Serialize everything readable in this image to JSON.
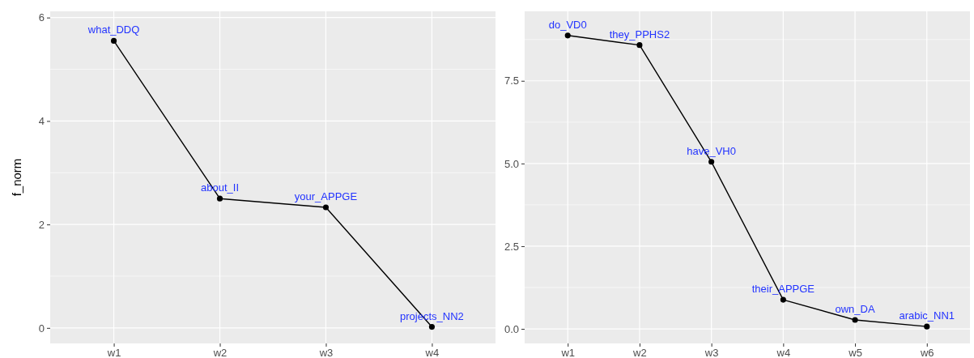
{
  "chart_data": [
    {
      "type": "line",
      "ylabel": "f_norm",
      "categories": [
        "w1",
        "w2",
        "w3",
        "w4"
      ],
      "series": [
        {
          "color": "#000000",
          "values": [
            5.55,
            2.5,
            2.33,
            0.02
          ]
        }
      ],
      "ylim": [
        -0.3,
        6.12
      ],
      "yticks": [
        0,
        2,
        4,
        6
      ],
      "grid": true,
      "marker": "circle",
      "annotations": [
        {
          "text": "what_DDQ",
          "x": "w1",
          "y": 5.55
        },
        {
          "text": "about_II",
          "x": "w2",
          "y": 2.5
        },
        {
          "text": "your_APPGE",
          "x": "w3",
          "y": 2.33
        },
        {
          "text": "projects_NN2",
          "x": "w4",
          "y": 0.02
        }
      ]
    },
    {
      "type": "line",
      "categories": [
        "w1",
        "w2",
        "w3",
        "w4",
        "w5",
        "w6"
      ],
      "series": [
        {
          "color": "#000000",
          "values": [
            8.87,
            8.58,
            5.05,
            0.88,
            0.27,
            0.07
          ]
        }
      ],
      "ylim": [
        -0.44,
        9.6
      ],
      "yticks": [
        {
          "value": 0,
          "label": "0.0"
        },
        {
          "value": 2.5,
          "label": "2.5"
        },
        {
          "value": 5,
          "label": "5.0"
        },
        {
          "value": 7.5,
          "label": "7.5"
        }
      ],
      "grid": true,
      "marker": "circle",
      "annotations": [
        {
          "text": "do_VD0",
          "x": "w1",
          "y": 8.87
        },
        {
          "text": "they_PPHS2",
          "x": "w2",
          "y": 8.58
        },
        {
          "text": "have_VH0",
          "x": "w3",
          "y": 5.05
        },
        {
          "text": "their_APPGE",
          "x": "w4",
          "y": 0.88
        },
        {
          "text": "own_DA",
          "x": "w5",
          "y": 0.27
        },
        {
          "text": "arabic_NN1",
          "x": "w6",
          "y": 0.07
        }
      ]
    }
  ]
}
